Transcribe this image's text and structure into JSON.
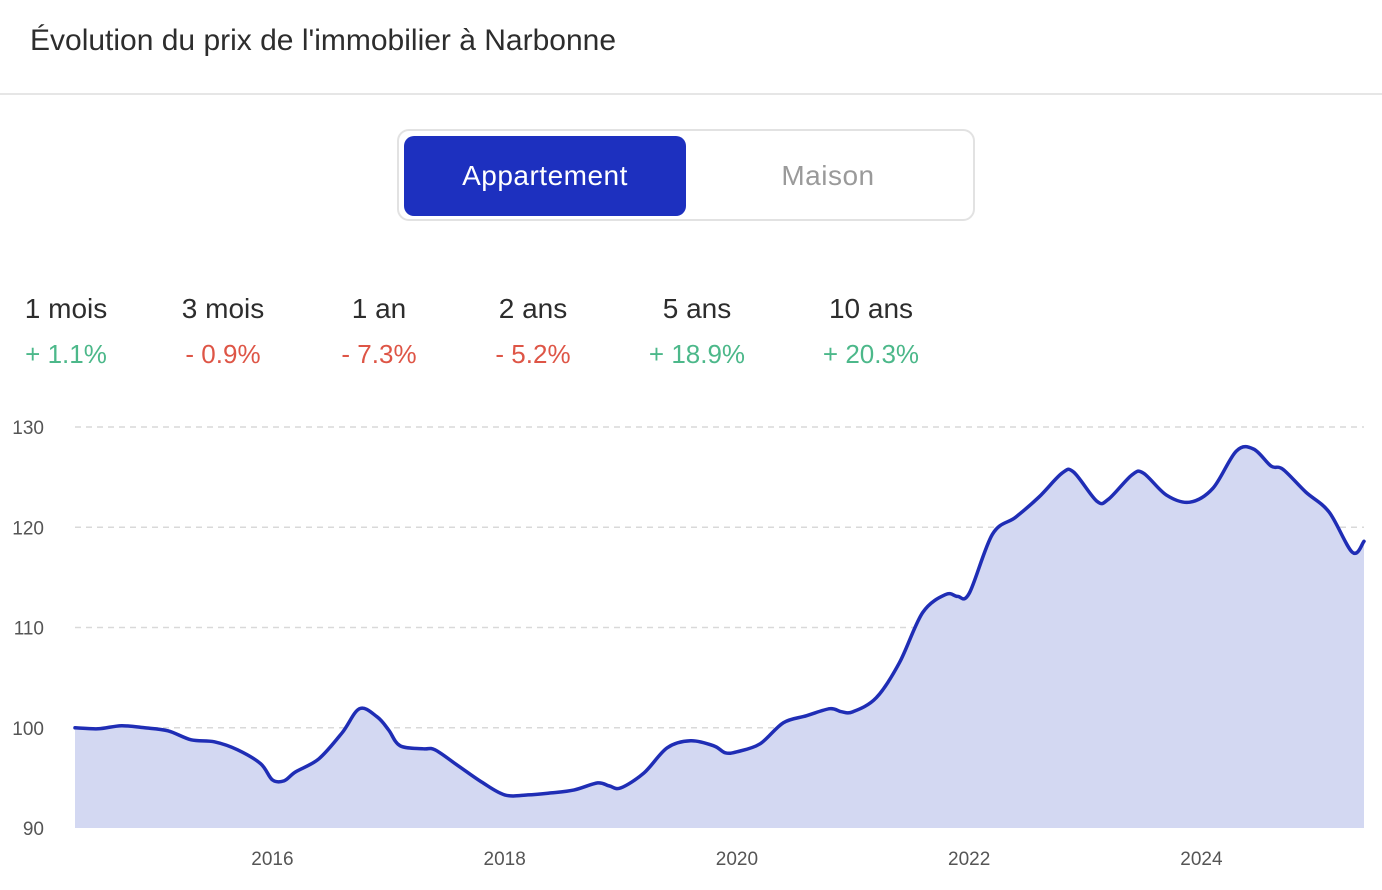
{
  "title": "Évolution du prix de l'immobilier à Narbonne",
  "toggle": {
    "options": [
      "Appartement",
      "Maison"
    ],
    "selected": "Appartement"
  },
  "stats": [
    {
      "label": "1 mois",
      "value": "+ 1.1%",
      "trend": "up"
    },
    {
      "label": "3 mois",
      "value": "- 0.9%",
      "trend": "down"
    },
    {
      "label": "1 an",
      "value": "- 7.3%",
      "trend": "down"
    },
    {
      "label": "2 ans",
      "value": "- 5.2%",
      "trend": "down"
    },
    {
      "label": "5 ans",
      "value": "+ 18.9%",
      "trend": "up"
    },
    {
      "label": "10 ans",
      "value": "+ 20.3%",
      "trend": "up"
    }
  ],
  "colors": {
    "accent": "#1d30bf",
    "line": "#1f2db5",
    "area": "#d3d8f2",
    "up": "#4cb88a",
    "down": "#de5546",
    "grid": "#d9d9d9"
  },
  "chart_data": {
    "type": "area",
    "xlabel": "",
    "ylabel": "",
    "ylim": [
      90,
      130
    ],
    "xlim": [
      2014.3,
      2025.4
    ],
    "y_ticks": [
      90,
      100,
      110,
      120,
      130
    ],
    "x_ticks": [
      2016,
      2018,
      2020,
      2022,
      2024
    ],
    "grid": true,
    "x": [
      2014.3,
      2014.5,
      2014.7,
      2014.9,
      2015.1,
      2015.3,
      2015.5,
      2015.7,
      2015.9,
      2016.0,
      2016.1,
      2016.2,
      2016.4,
      2016.6,
      2016.75,
      2016.9,
      2017.0,
      2017.1,
      2017.3,
      2017.4,
      2017.6,
      2017.8,
      2018.0,
      2018.2,
      2018.4,
      2018.6,
      2018.8,
      2018.9,
      2019.0,
      2019.2,
      2019.4,
      2019.6,
      2019.8,
      2019.9,
      2020.0,
      2020.2,
      2020.4,
      2020.6,
      2020.8,
      2020.9,
      2021.0,
      2021.2,
      2021.4,
      2021.6,
      2021.8,
      2021.9,
      2022.0,
      2022.2,
      2022.4,
      2022.6,
      2022.8,
      2022.9,
      2023.1,
      2023.2,
      2023.4,
      2023.5,
      2023.7,
      2023.9,
      2024.1,
      2024.3,
      2024.45,
      2024.6,
      2024.7,
      2024.9,
      2025.1,
      2025.3,
      2025.4
    ],
    "series": [
      {
        "values": [
          100.0,
          99.9,
          100.2,
          100.0,
          99.7,
          98.8,
          98.6,
          97.8,
          96.4,
          94.8,
          94.7,
          95.6,
          96.9,
          99.5,
          101.9,
          101.1,
          99.8,
          98.2,
          97.9,
          97.8,
          96.2,
          94.6,
          93.3,
          93.3,
          93.5,
          93.8,
          94.5,
          94.2,
          94.0,
          95.5,
          98.0,
          98.7,
          98.2,
          97.5,
          97.6,
          98.4,
          100.5,
          101.2,
          101.9,
          101.6,
          101.6,
          103.0,
          106.5,
          111.5,
          113.3,
          113.1,
          113.4,
          119.3,
          121.0,
          123.0,
          125.4,
          125.5,
          122.6,
          122.8,
          125.2,
          125.4,
          123.2,
          122.5,
          123.9,
          127.6,
          127.8,
          126.1,
          125.8,
          123.5,
          121.5,
          117.5,
          118.6
        ]
      }
    ]
  }
}
